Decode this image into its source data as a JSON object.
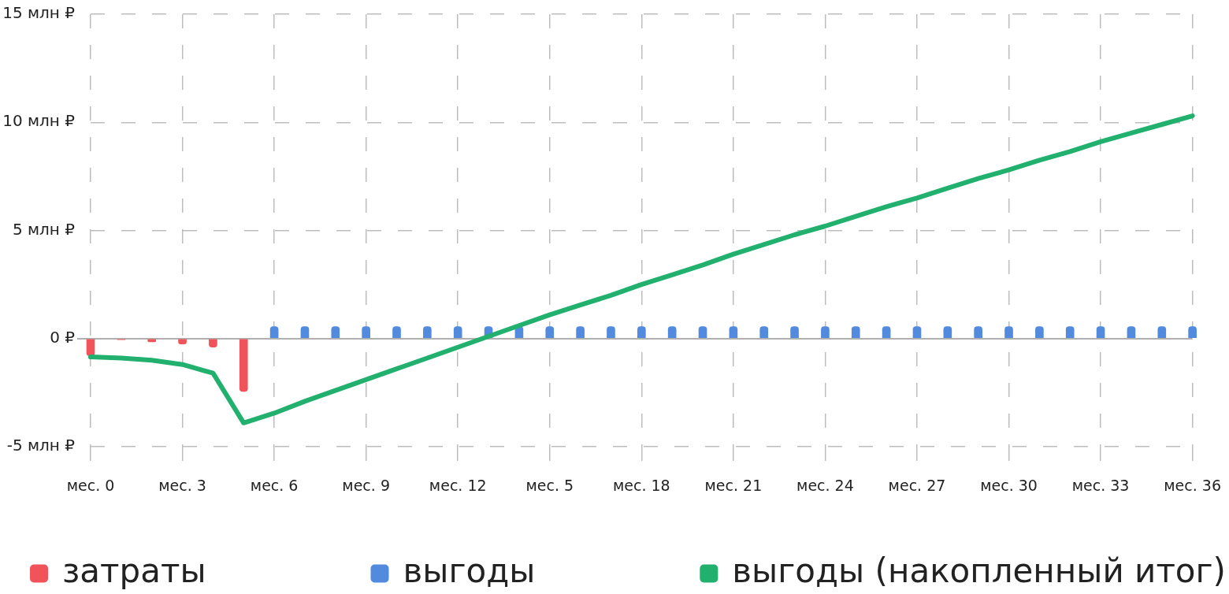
{
  "chart_data": {
    "type": "bar",
    "categories": [
      "мес. 0",
      null,
      null,
      "мес. 3",
      null,
      null,
      "мес. 6",
      null,
      null,
      "мес. 9",
      null,
      null,
      "мес. 12",
      null,
      null,
      "мес. 5",
      null,
      null,
      "мес. 18",
      null,
      null,
      "мес. 21",
      null,
      null,
      "мес. 24",
      null,
      null,
      "мес. 27",
      null,
      null,
      "мес. 30",
      null,
      null,
      "мес. 33",
      null,
      null,
      "мес. 36"
    ],
    "series": [
      {
        "name": "затраты",
        "color": "#f05359",
        "values": [
          -0.8,
          -0.05,
          -0.15,
          -0.25,
          -0.4,
          -2.45,
          null,
          null,
          null,
          null,
          null,
          null,
          null,
          null,
          null,
          null,
          null,
          null,
          null,
          null,
          null,
          null,
          null,
          null,
          null,
          null,
          null,
          null,
          null,
          null,
          null,
          null,
          null,
          null,
          null,
          null,
          null
        ]
      },
      {
        "name": "выгоды",
        "color": "#528bde",
        "values": [
          null,
          null,
          null,
          null,
          null,
          null,
          0.55,
          0.55,
          0.55,
          0.55,
          0.55,
          0.55,
          0.55,
          0.55,
          0.55,
          0.55,
          0.55,
          0.55,
          0.55,
          0.55,
          0.55,
          0.55,
          0.55,
          0.55,
          0.55,
          0.55,
          0.55,
          0.55,
          0.55,
          0.55,
          0.55,
          0.55,
          0.55,
          0.55,
          0.55,
          0.55,
          0.55
        ]
      },
      {
        "name": "выгоды (накопленный итог)",
        "type": "line",
        "color": "#22b06e",
        "values": [
          -0.85,
          -0.9,
          -1.0,
          -1.2,
          -1.6,
          -3.9,
          -3.45,
          -2.9,
          -2.4,
          -1.9,
          -1.4,
          -0.9,
          -0.4,
          0.1,
          0.6,
          1.1,
          1.55,
          2.0,
          2.5,
          2.95,
          3.4,
          3.9,
          4.35,
          4.8,
          5.2,
          5.65,
          6.1,
          6.5,
          6.95,
          7.4,
          7.8,
          8.25,
          8.65,
          9.1,
          9.5,
          9.9,
          10.3
        ]
      }
    ],
    "ylim": [
      -5,
      15
    ],
    "yticks": [
      {
        "value": -5,
        "label": "-5 млн ₽"
      },
      {
        "value": 0,
        "label": "0 ₽"
      },
      {
        "value": 5,
        "label": "5 млн ₽"
      },
      {
        "value": 10,
        "label": "10 млн ₽"
      },
      {
        "value": 15,
        "label": "15 млн ₽"
      }
    ],
    "grid": true,
    "legend": "bottom",
    "marker": "none"
  }
}
